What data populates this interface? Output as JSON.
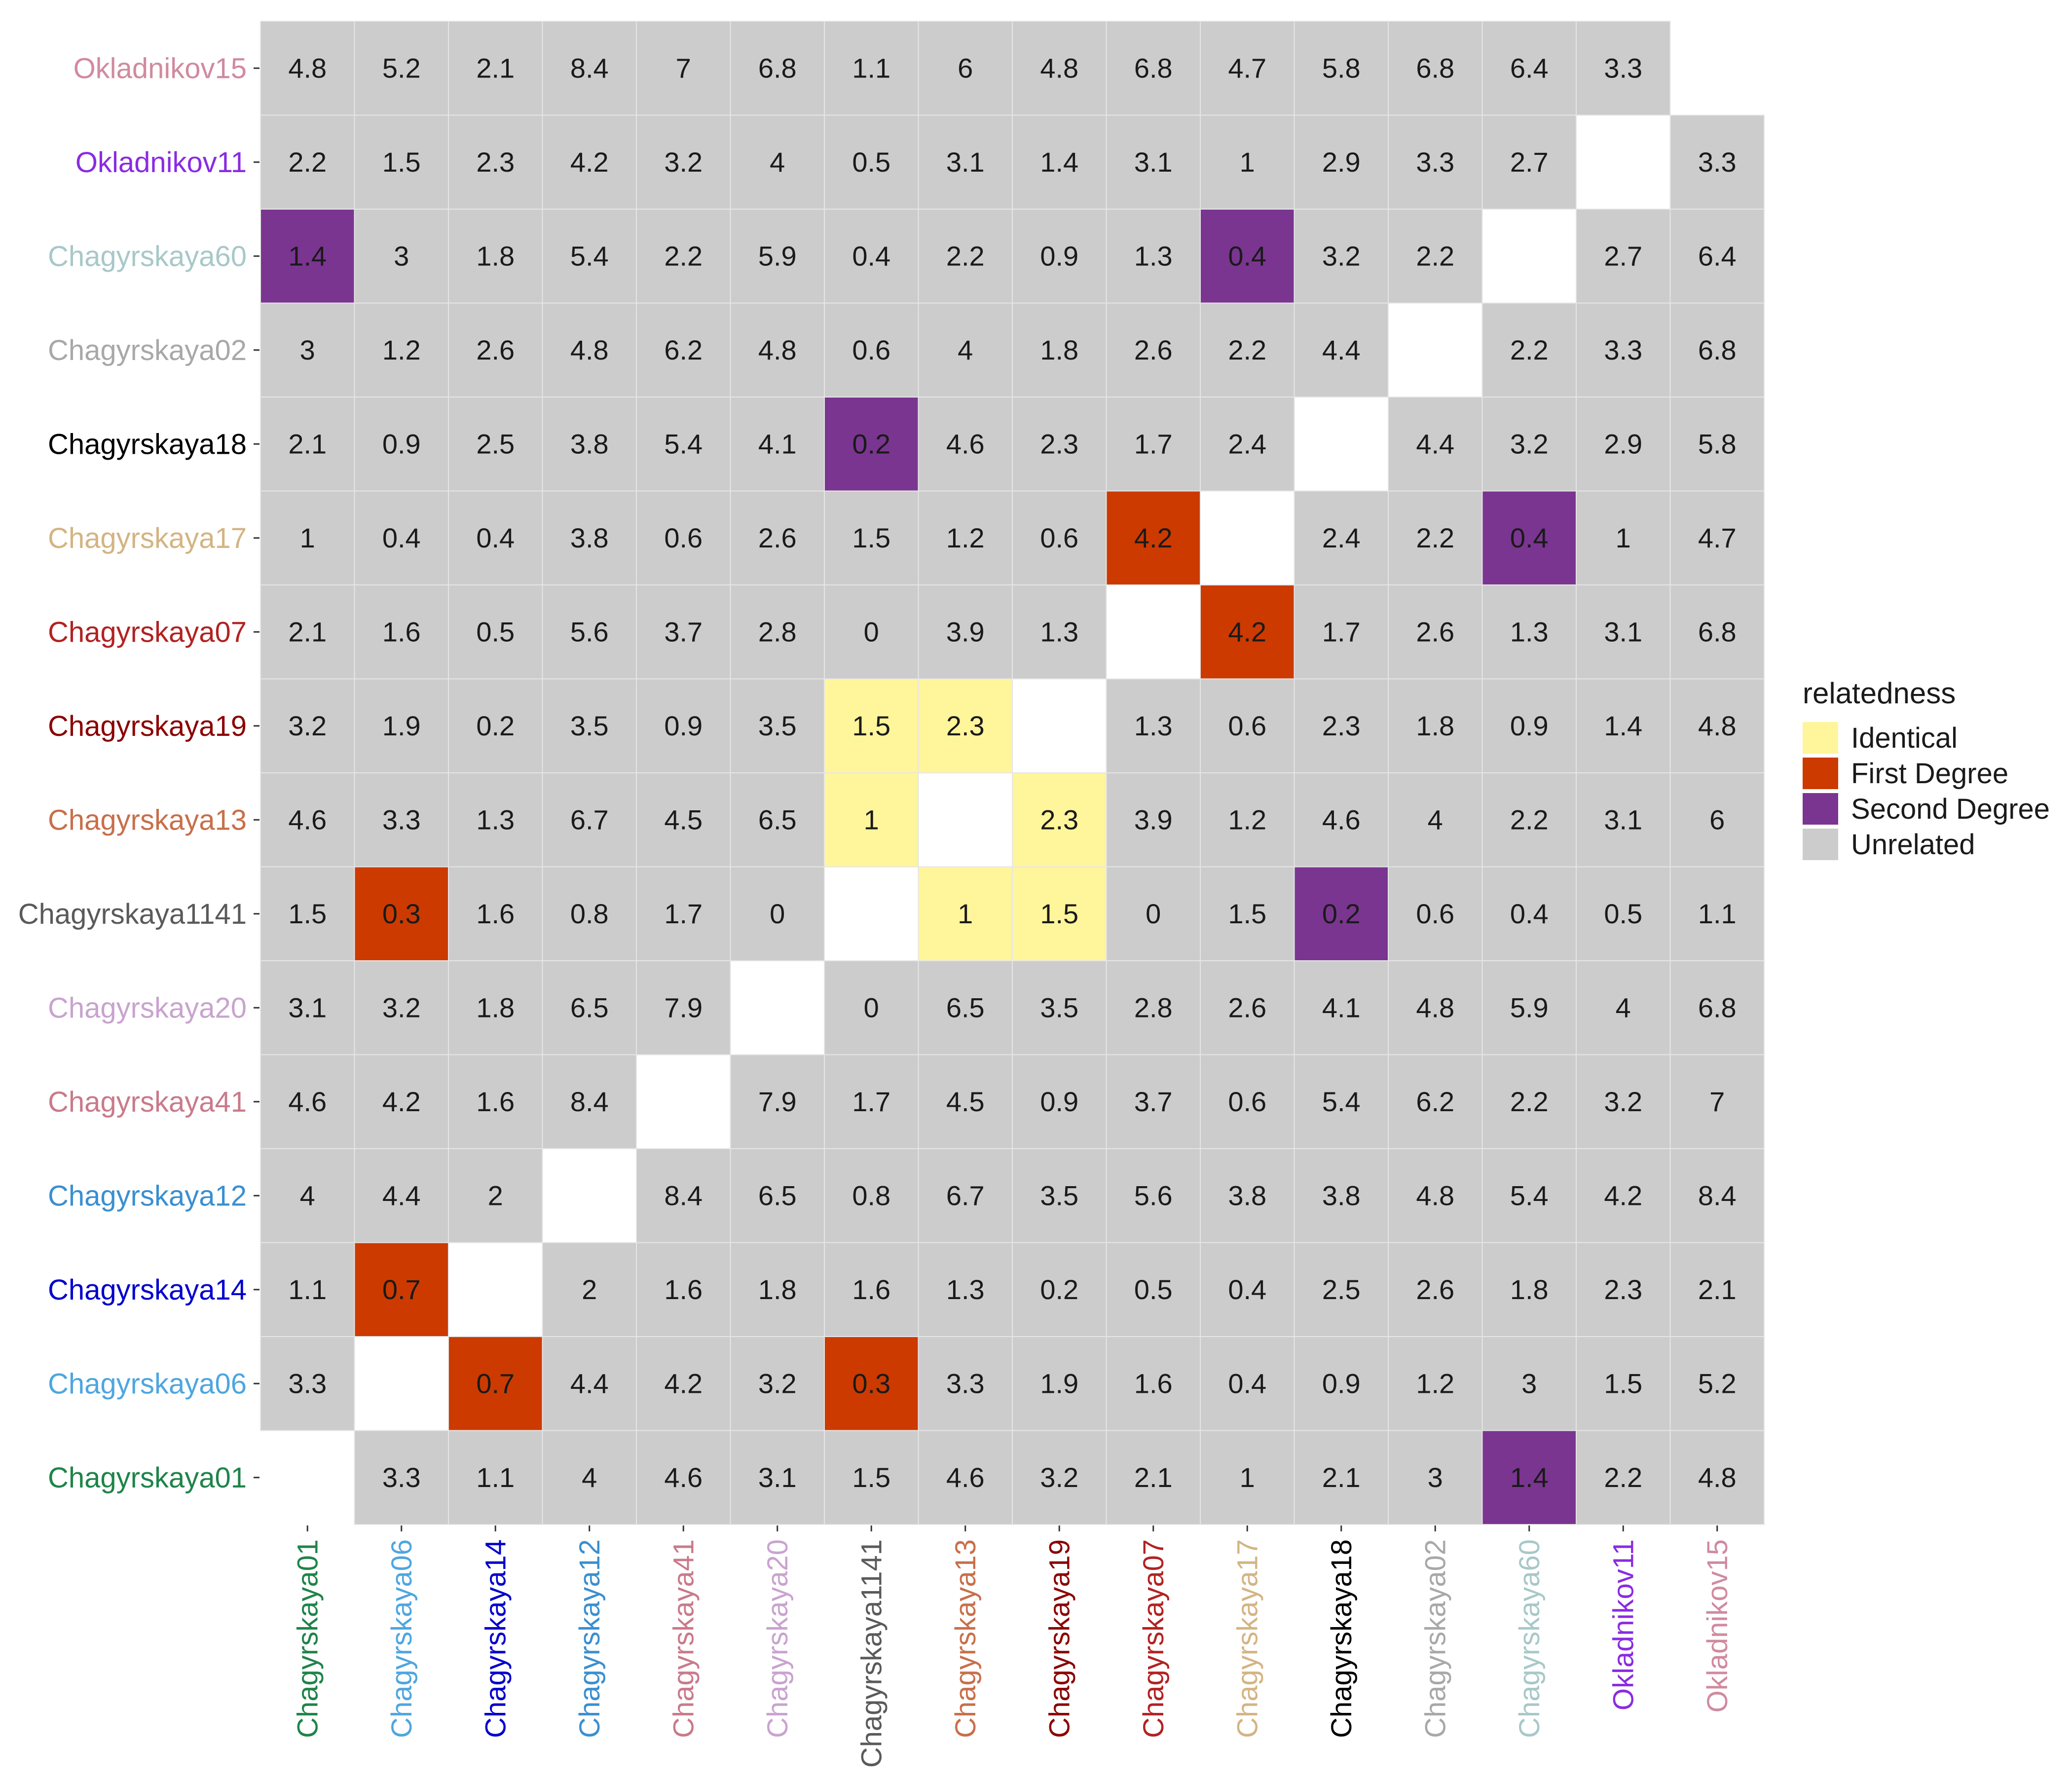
{
  "chart_data": {
    "type": "heatmap",
    "title": "",
    "xlabel": "",
    "ylabel": "",
    "labels": [
      "Chagyrskaya01",
      "Chagyrskaya06",
      "Chagyrskaya14",
      "Chagyrskaya12",
      "Chagyrskaya41",
      "Chagyrskaya20",
      "Chagyrskaya1141",
      "Chagyrskaya13",
      "Chagyrskaya19",
      "Chagyrskaya07",
      "Chagyrskaya17",
      "Chagyrskaya18",
      "Chagyrskaya02",
      "Chagyrskaya60",
      "Okladnikov11",
      "Okladnikov15"
    ],
    "label_colors": [
      "#1e8449",
      "#4ea6e0",
      "#0000cc",
      "#3a8fd0",
      "#c97a8a",
      "#c9a3cf",
      "#5a5a5a",
      "#c86f4a",
      "#8b0000",
      "#b22222",
      "#d4b483",
      "#000000",
      "#a8a8a8",
      "#a8c8c8",
      "#8a2be2",
      "#d08aa0"
    ],
    "values": [
      [
        null,
        3.3,
        1.1,
        4,
        4.6,
        3.1,
        1.5,
        4.6,
        3.2,
        2.1,
        1,
        2.1,
        3,
        1.4,
        2.2,
        4.8
      ],
      [
        3.3,
        null,
        0.7,
        4.4,
        4.2,
        3.2,
        0.3,
        3.3,
        1.9,
        1.6,
        0.4,
        0.9,
        1.2,
        3,
        1.5,
        5.2
      ],
      [
        1.1,
        0.7,
        null,
        2,
        1.6,
        1.8,
        1.6,
        1.3,
        0.2,
        0.5,
        0.4,
        2.5,
        2.6,
        1.8,
        2.3,
        2.1
      ],
      [
        4,
        4.4,
        2,
        null,
        8.4,
        6.5,
        0.8,
        6.7,
        3.5,
        5.6,
        3.8,
        3.8,
        4.8,
        5.4,
        4.2,
        8.4
      ],
      [
        4.6,
        4.2,
        1.6,
        8.4,
        null,
        7.9,
        1.7,
        4.5,
        0.9,
        3.7,
        0.6,
        5.4,
        6.2,
        2.2,
        3.2,
        7
      ],
      [
        3.1,
        3.2,
        1.8,
        6.5,
        7.9,
        null,
        0,
        6.5,
        3.5,
        2.8,
        2.6,
        4.1,
        4.8,
        5.9,
        4,
        6.8
      ],
      [
        1.5,
        0.3,
        1.6,
        0.8,
        1.7,
        0,
        null,
        1,
        1.5,
        0,
        1.5,
        0.2,
        0.6,
        0.4,
        0.5,
        1.1
      ],
      [
        4.6,
        3.3,
        1.3,
        6.7,
        4.5,
        6.5,
        1,
        null,
        2.3,
        3.9,
        1.2,
        4.6,
        4,
        2.2,
        3.1,
        6
      ],
      [
        3.2,
        1.9,
        0.2,
        3.5,
        0.9,
        3.5,
        1.5,
        2.3,
        null,
        1.3,
        0.6,
        2.3,
        1.8,
        0.9,
        1.4,
        4.8
      ],
      [
        2.1,
        1.6,
        0.5,
        5.6,
        3.7,
        2.8,
        0,
        3.9,
        1.3,
        null,
        4.2,
        1.7,
        2.6,
        1.3,
        3.1,
        6.8
      ],
      [
        1,
        0.4,
        0.4,
        3.8,
        0.6,
        2.6,
        1.5,
        1.2,
        0.6,
        4.2,
        null,
        2.4,
        2.2,
        0.4,
        1,
        4.7
      ],
      [
        2.1,
        0.9,
        2.5,
        3.8,
        5.4,
        4.1,
        0.2,
        4.6,
        2.3,
        1.7,
        2.4,
        null,
        4.4,
        3.2,
        2.9,
        5.8
      ],
      [
        3,
        1.2,
        2.6,
        4.8,
        6.2,
        4.8,
        0.6,
        4,
        1.8,
        2.6,
        2.2,
        4.4,
        null,
        2.2,
        3.3,
        6.8
      ],
      [
        1.4,
        3,
        1.8,
        5.4,
        2.2,
        5.9,
        0.4,
        2.2,
        0.9,
        1.3,
        0.4,
        3.2,
        2.2,
        null,
        2.7,
        6.4
      ],
      [
        2.2,
        1.5,
        2.3,
        4.2,
        3.2,
        4,
        0.5,
        3.1,
        1.4,
        3.1,
        1,
        2.9,
        3.3,
        2.7,
        null,
        3.3
      ],
      [
        4.8,
        5.2,
        2.1,
        8.4,
        7,
        6.8,
        1.1,
        6,
        4.8,
        6.8,
        4.7,
        5.8,
        6.8,
        6.4,
        3.3,
        null
      ]
    ],
    "relatedness": [
      [
        null,
        "U",
        "U",
        "U",
        "U",
        "U",
        "U",
        "U",
        "U",
        "U",
        "U",
        "U",
        "U",
        "S",
        "U",
        "U"
      ],
      [
        "U",
        null,
        "F",
        "U",
        "U",
        "U",
        "F",
        "U",
        "U",
        "U",
        "U",
        "U",
        "U",
        "U",
        "U",
        "U"
      ],
      [
        "U",
        "F",
        null,
        "U",
        "U",
        "U",
        "U",
        "U",
        "U",
        "U",
        "U",
        "U",
        "U",
        "U",
        "U",
        "U"
      ],
      [
        "U",
        "U",
        "U",
        null,
        "U",
        "U",
        "U",
        "U",
        "U",
        "U",
        "U",
        "U",
        "U",
        "U",
        "U",
        "U"
      ],
      [
        "U",
        "U",
        "U",
        "U",
        null,
        "U",
        "U",
        "U",
        "U",
        "U",
        "U",
        "U",
        "U",
        "U",
        "U",
        "U"
      ],
      [
        "U",
        "U",
        "U",
        "U",
        "U",
        null,
        "U",
        "U",
        "U",
        "U",
        "U",
        "U",
        "U",
        "U",
        "U",
        "U"
      ],
      [
        "U",
        "F",
        "U",
        "U",
        "U",
        "U",
        null,
        "I",
        "I",
        "U",
        "U",
        "S",
        "U",
        "U",
        "U",
        "U"
      ],
      [
        "U",
        "U",
        "U",
        "U",
        "U",
        "U",
        "I",
        null,
        "I",
        "U",
        "U",
        "U",
        "U",
        "U",
        "U",
        "U"
      ],
      [
        "U",
        "U",
        "U",
        "U",
        "U",
        "U",
        "I",
        "I",
        null,
        "U",
        "U",
        "U",
        "U",
        "U",
        "U",
        "U"
      ],
      [
        "U",
        "U",
        "U",
        "U",
        "U",
        "U",
        "U",
        "U",
        "U",
        null,
        "F",
        "U",
        "U",
        "U",
        "U",
        "U"
      ],
      [
        "U",
        "U",
        "U",
        "U",
        "U",
        "U",
        "U",
        "U",
        "U",
        "F",
        null,
        "U",
        "U",
        "S",
        "U",
        "U"
      ],
      [
        "U",
        "U",
        "U",
        "U",
        "U",
        "U",
        "S",
        "U",
        "U",
        "U",
        "U",
        null,
        "U",
        "U",
        "U",
        "U"
      ],
      [
        "U",
        "U",
        "U",
        "U",
        "U",
        "U",
        "U",
        "U",
        "U",
        "U",
        "U",
        "U",
        null,
        "U",
        "U",
        "U"
      ],
      [
        "S",
        "U",
        "U",
        "U",
        "U",
        "U",
        "U",
        "U",
        "U",
        "U",
        "S",
        "U",
        "U",
        null,
        "U",
        "U"
      ],
      [
        "U",
        "U",
        "U",
        "U",
        "U",
        "U",
        "U",
        "U",
        "U",
        "U",
        "U",
        "U",
        "U",
        "U",
        null,
        "U"
      ],
      [
        "U",
        "U",
        "U",
        "U",
        "U",
        "U",
        "U",
        "U",
        "U",
        "U",
        "U",
        "U",
        "U",
        "U",
        "U",
        null
      ]
    ],
    "legend": {
      "title": "relatedness",
      "position": "right",
      "items": [
        {
          "code": "I",
          "label": "Identical",
          "color": "#fff59a"
        },
        {
          "code": "F",
          "label": "First Degree",
          "color": "#cc3a00"
        },
        {
          "code": "S",
          "label": "Second Degree",
          "color": "#7a3590"
        },
        {
          "code": "U",
          "label": "Unrelated",
          "color": "#cccccc"
        }
      ]
    },
    "grid": true
  }
}
